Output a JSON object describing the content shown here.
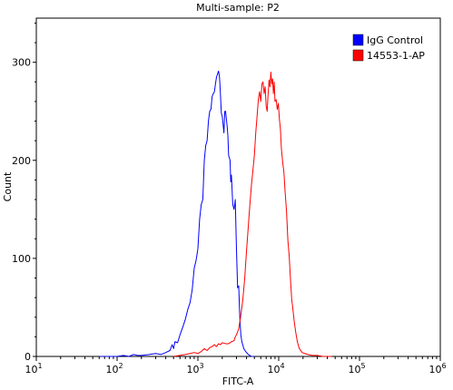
{
  "chart_data": {
    "type": "line",
    "title": "Multi-sample: P2",
    "xlabel": "FITC-A",
    "ylabel": "Count",
    "xscale": "log",
    "xlim": [
      10,
      1000000
    ],
    "ylim": [
      0,
      345
    ],
    "x_ticks": [
      {
        "base": "10",
        "exp": "1",
        "value": 10
      },
      {
        "base": "10",
        "exp": "2",
        "value": 100
      },
      {
        "base": "10",
        "exp": "3",
        "value": 1000
      },
      {
        "base": "10",
        "exp": "4",
        "value": 10000
      },
      {
        "base": "10",
        "exp": "5",
        "value": 100000
      },
      {
        "base": "10",
        "exp": "6",
        "value": 1000000
      }
    ],
    "y_ticks": [
      {
        "label": "0",
        "value": 0
      },
      {
        "label": "100",
        "value": 100
      },
      {
        "label": "200",
        "value": 200
      },
      {
        "label": "300",
        "value": 300
      }
    ],
    "grid": false,
    "legend_position": "top-right",
    "series": [
      {
        "name": "IgG Control",
        "color": "#0000ff",
        "points": [
          [
            60,
            0
          ],
          [
            100,
            0
          ],
          [
            120,
            1
          ],
          [
            140,
            0
          ],
          [
            160,
            2
          ],
          [
            180,
            1
          ],
          [
            200,
            1
          ],
          [
            250,
            2
          ],
          [
            300,
            3
          ],
          [
            350,
            2
          ],
          [
            400,
            4
          ],
          [
            450,
            6
          ],
          [
            480,
            12
          ],
          [
            500,
            8
          ],
          [
            520,
            15
          ],
          [
            560,
            14
          ],
          [
            600,
            22
          ],
          [
            650,
            30
          ],
          [
            700,
            38
          ],
          [
            750,
            48
          ],
          [
            800,
            55
          ],
          [
            850,
            68
          ],
          [
            900,
            90
          ],
          [
            950,
            98
          ],
          [
            1000,
            110
          ],
          [
            1050,
            140
          ],
          [
            1100,
            155
          ],
          [
            1150,
            160
          ],
          [
            1200,
            200
          ],
          [
            1250,
            215
          ],
          [
            1300,
            220
          ],
          [
            1350,
            240
          ],
          [
            1400,
            250
          ],
          [
            1450,
            252
          ],
          [
            1500,
            265
          ],
          [
            1550,
            268
          ],
          [
            1600,
            270
          ],
          [
            1650,
            278
          ],
          [
            1700,
            285
          ],
          [
            1750,
            288
          ],
          [
            1800,
            291
          ],
          [
            1850,
            285
          ],
          [
            1900,
            268
          ],
          [
            1950,
            248
          ],
          [
            2000,
            245
          ],
          [
            2100,
            228
          ],
          [
            2150,
            250
          ],
          [
            2200,
            250
          ],
          [
            2300,
            235
          ],
          [
            2350,
            225
          ],
          [
            2400,
            205
          ],
          [
            2500,
            200
          ],
          [
            2550,
            178
          ],
          [
            2600,
            185
          ],
          [
            2700,
            155
          ],
          [
            2800,
            150
          ],
          [
            2900,
            160
          ],
          [
            3000,
            110
          ],
          [
            3100,
            70
          ],
          [
            3200,
            72
          ],
          [
            3300,
            40
          ],
          [
            3400,
            22
          ],
          [
            3500,
            15
          ],
          [
            3700,
            8
          ],
          [
            3900,
            5
          ],
          [
            4200,
            2
          ],
          [
            4600,
            0
          ],
          [
            5000,
            0
          ]
        ]
      },
      {
        "name": "14553-1-AP",
        "color": "#ff0000",
        "points": [
          [
            500,
            0
          ],
          [
            700,
            2
          ],
          [
            800,
            3
          ],
          [
            900,
            4
          ],
          [
            1000,
            3
          ],
          [
            1100,
            5
          ],
          [
            1200,
            8
          ],
          [
            1300,
            6
          ],
          [
            1400,
            9
          ],
          [
            1500,
            10
          ],
          [
            1600,
            12
          ],
          [
            1700,
            10
          ],
          [
            1800,
            13
          ],
          [
            1900,
            12
          ],
          [
            2000,
            14
          ],
          [
            2200,
            13
          ],
          [
            2400,
            13
          ],
          [
            2600,
            15
          ],
          [
            2800,
            16
          ],
          [
            2900,
            20
          ],
          [
            3000,
            22
          ],
          [
            3200,
            28
          ],
          [
            3400,
            42
          ],
          [
            3600,
            58
          ],
          [
            3800,
            80
          ],
          [
            4000,
            108
          ],
          [
            4200,
            132
          ],
          [
            4400,
            155
          ],
          [
            4600,
            175
          ],
          [
            4800,
            190
          ],
          [
            5000,
            205
          ],
          [
            5200,
            228
          ],
          [
            5400,
            245
          ],
          [
            5600,
            262
          ],
          [
            5800,
            270
          ],
          [
            6000,
            260
          ],
          [
            6200,
            278
          ],
          [
            6400,
            280
          ],
          [
            6600,
            268
          ],
          [
            6800,
            275
          ],
          [
            7000,
            255
          ],
          [
            7200,
            250
          ],
          [
            7400,
            268
          ],
          [
            7600,
            282
          ],
          [
            7800,
            275
          ],
          [
            8000,
            290
          ],
          [
            8200,
            278
          ],
          [
            8400,
            283
          ],
          [
            8600,
            268
          ],
          [
            8800,
            280
          ],
          [
            9000,
            260
          ],
          [
            9300,
            262
          ],
          [
            9600,
            252
          ],
          [
            9900,
            258
          ],
          [
            10200,
            242
          ],
          [
            10500,
            232
          ],
          [
            10800,
            212
          ],
          [
            11200,
            198
          ],
          [
            11600,
            188
          ],
          [
            12000,
            168
          ],
          [
            12500,
            148
          ],
          [
            13000,
            118
          ],
          [
            13500,
            102
          ],
          [
            14000,
            78
          ],
          [
            14500,
            58
          ],
          [
            15000,
            48
          ],
          [
            15600,
            35
          ],
          [
            16300,
            24
          ],
          [
            17000,
            15
          ],
          [
            18000,
            8
          ],
          [
            19500,
            4
          ],
          [
            21000,
            3
          ],
          [
            23000,
            2
          ],
          [
            26000,
            1
          ],
          [
            30000,
            1
          ],
          [
            35000,
            0
          ],
          [
            45000,
            0
          ]
        ]
      }
    ]
  }
}
